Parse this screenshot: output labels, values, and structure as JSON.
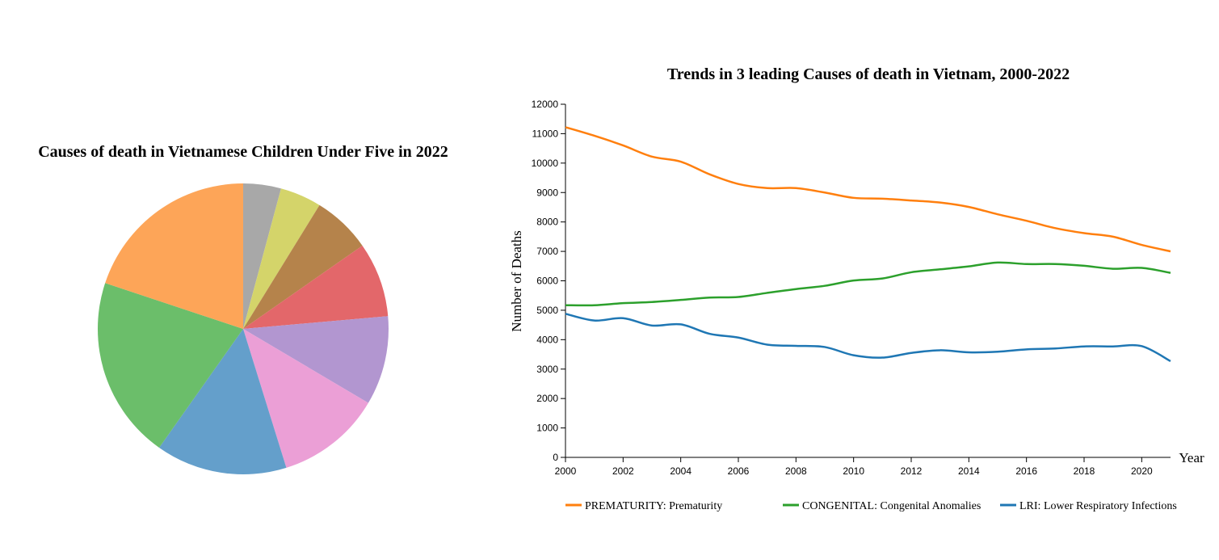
{
  "chart_data": [
    {
      "type": "pie",
      "title": "Causes of death in Vietnamese Children Under Five in 2022",
      "slices": [
        {
          "value": 4.2,
          "color": "#a8a8a8"
        },
        {
          "value": 4.6,
          "color": "#d4d46a"
        },
        {
          "value": 6.5,
          "color": "#b5834b"
        },
        {
          "value": 8.3,
          "color": "#e3676a"
        },
        {
          "value": 9.9,
          "color": "#b296d0"
        },
        {
          "value": 11.7,
          "color": "#eb9fd6"
        },
        {
          "value": 14.6,
          "color": "#649fcb"
        },
        {
          "value": 20.3,
          "color": "#6bbe6a"
        },
        {
          "value": 19.9,
          "color": "#fda558"
        }
      ]
    },
    {
      "type": "line",
      "title": "Trends in 3 leading Causes of death in Vietnam, 2000-2022",
      "xlabel": "Year",
      "ylabel": "Number of Deaths",
      "xlim": [
        2000,
        2021
      ],
      "ylim": [
        0,
        12000
      ],
      "xticks": [
        2000,
        2002,
        2004,
        2006,
        2008,
        2010,
        2012,
        2014,
        2016,
        2018,
        2020
      ],
      "yticks": [
        0,
        1000,
        2000,
        3000,
        4000,
        5000,
        6000,
        7000,
        8000,
        9000,
        10000,
        11000,
        12000
      ],
      "grid": false,
      "legend_position": "bottom",
      "x": [
        2000,
        2001,
        2002,
        2003,
        2004,
        2005,
        2006,
        2007,
        2008,
        2009,
        2010,
        2011,
        2012,
        2013,
        2014,
        2015,
        2016,
        2017,
        2018,
        2019,
        2020,
        2021
      ],
      "series": [
        {
          "name": "PREMATURITY: Prematurity",
          "color": "#ff7f0e",
          "values": [
            11220,
            10930,
            10600,
            10220,
            10050,
            9620,
            9290,
            9150,
            9150,
            9000,
            8820,
            8790,
            8730,
            8660,
            8510,
            8260,
            8040,
            7790,
            7620,
            7500,
            7220,
            7000
          ]
        },
        {
          "name": "CONGENITAL: Congenital Anomalies",
          "color": "#2ca02c",
          "values": [
            5170,
            5170,
            5240,
            5280,
            5350,
            5430,
            5450,
            5590,
            5720,
            5830,
            6010,
            6080,
            6290,
            6390,
            6490,
            6620,
            6570,
            6570,
            6510,
            6410,
            6440,
            6270
          ]
        },
        {
          "name": "LRI: Lower Respiratory Infections",
          "color": "#1f77b4",
          "values": [
            4880,
            4650,
            4730,
            4480,
            4520,
            4200,
            4070,
            3830,
            3790,
            3750,
            3470,
            3390,
            3550,
            3640,
            3570,
            3590,
            3670,
            3700,
            3770,
            3770,
            3780,
            3270
          ]
        }
      ]
    }
  ]
}
